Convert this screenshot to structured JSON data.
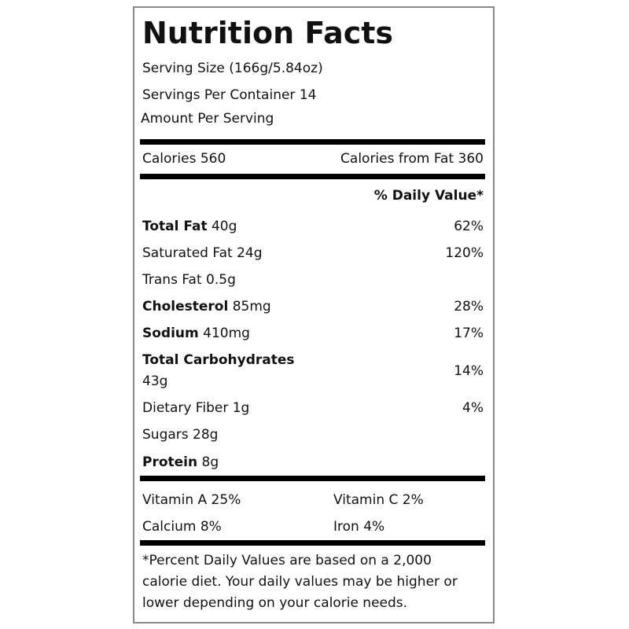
{
  "title": "Nutrition Facts",
  "serving_size": "Serving Size (166g/5.84oz)",
  "servings_per_container": "Servings Per Container 14",
  "amount_per_serving": "Amount Per Serving",
  "calories": "Calories 560",
  "calories_from_fat": "Calories from Fat 360",
  "daily_value_header": "% Daily Value*",
  "nutrients": [
    {
      "name": "Total Fat",
      "amount": "40g",
      "dv": "62%",
      "bold": true
    },
    {
      "name": "Saturated Fat",
      "amount": "24g",
      "dv": "120%",
      "bold": false
    },
    {
      "name": "Trans Fat",
      "amount": "0.5g",
      "bold": false
    },
    {
      "name": "Cholesterol",
      "amount": "85mg",
      "dv": "28%",
      "bold": true
    },
    {
      "name": "Sodium",
      "amount": "410mg",
      "dv": "17%",
      "bold": true
    },
    {
      "name": "Total Carbohydrates",
      "amount": "43g",
      "dv": "14%",
      "bold": true
    },
    {
      "name": "Dietary Fiber",
      "amount": "1g",
      "dv": "4%",
      "bold": false
    },
    {
      "name": "Sugars",
      "amount": "28g",
      "bold": false
    },
    {
      "name": "Protein",
      "amount": "8g",
      "bold": true
    }
  ],
  "vitamins": [
    [
      "Vitamin A 25%",
      "Vitamin C 2%"
    ],
    [
      "Calcium 8%",
      "Iron 4%"
    ]
  ],
  "footnote": "*Percent Daily Values are based on a 2,000 calorie diet. Your daily values may be higher or lower depending on your calorie needs."
}
